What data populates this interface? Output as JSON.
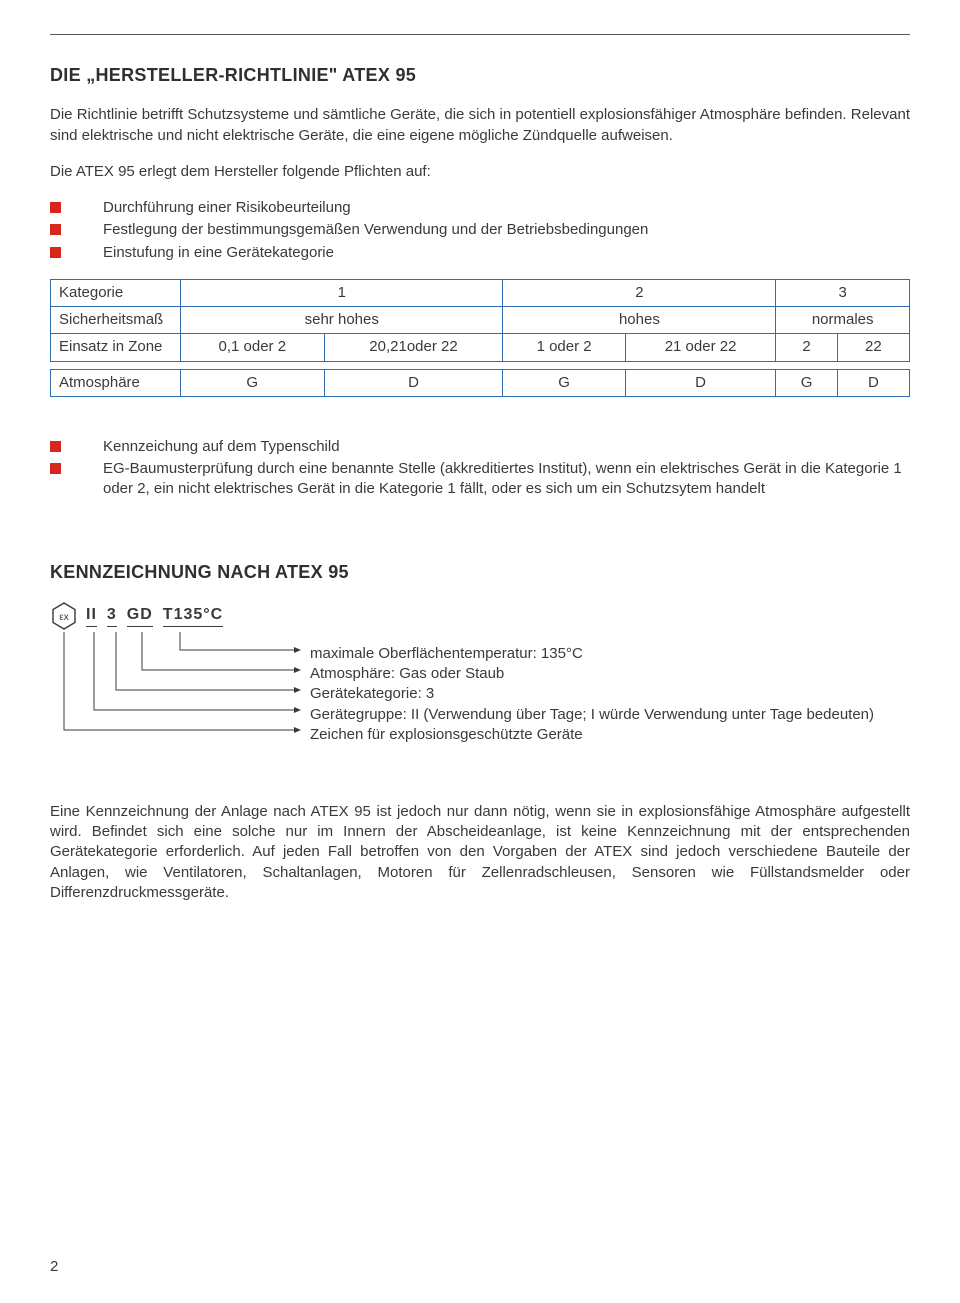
{
  "heading1": "DIE „HERSTELLER-RICHTLINIE\" ATEX 95",
  "intro": "Die Richtlinie betrifft Schutzsysteme und sämtliche Geräte, die sich in potentiell explosionsfähiger Atmosphäre befinden. Relevant sind elektrische und nicht elektrische Geräte, die eine eigene mögliche Zündquelle aufweisen.",
  "intro2": "Die ATEX 95 erlegt dem Hersteller folgende Pflichten auf:",
  "bullets1": [
    "Durchführung einer Risikobeurteilung",
    "Festlegung der bestimmungsgemäßen Verwendung und der Betriebsbedingungen",
    "Einstufung in eine Gerätekategorie"
  ],
  "table": {
    "rows": [
      {
        "label": "Kategorie",
        "cells": [
          {
            "t": "1",
            "span": 2
          },
          {
            "t": "2",
            "span": 2
          },
          {
            "t": "3",
            "span": 2
          }
        ]
      },
      {
        "label": "Sicherheitsmaß",
        "cells": [
          {
            "t": "sehr hohes",
            "span": 2
          },
          {
            "t": "hohes",
            "span": 2
          },
          {
            "t": "normales",
            "span": 2
          }
        ]
      },
      {
        "label": "Einsatz in Zone",
        "cells": [
          {
            "t": "0,1 oder 2"
          },
          {
            "t": "20,21oder 22"
          },
          {
            "t": "1 oder 2"
          },
          {
            "t": "21 oder 22"
          },
          {
            "t": "2"
          },
          {
            "t": "22"
          }
        ]
      },
      {
        "label": "Atmosphäre",
        "cells": [
          {
            "t": "G"
          },
          {
            "t": "D"
          },
          {
            "t": "G"
          },
          {
            "t": "D"
          },
          {
            "t": "G"
          },
          {
            "t": "D"
          }
        ]
      }
    ],
    "border_color": "#2f6fb1"
  },
  "bullets2": [
    "Kennzeichung auf dem Typenschild",
    "EG-Baumusterprüfung durch eine benannte Stelle (akkreditiertes Institut), wenn ein elektrisches Gerät in die Kategorie 1 oder 2, ein nicht elektrisches Gerät in die Kategorie 1 fällt, oder es sich um ein Schutzsytem handelt"
  ],
  "heading2": "KENNZEICHNUNG NACH ATEX 95",
  "marking": {
    "parts": [
      "II",
      "3",
      "GD",
      "T135°C"
    ]
  },
  "explanations": [
    "maximale Oberflächentemperatur: 135°C",
    "Atmosphäre: Gas oder Staub",
    "Gerätekategorie: 3",
    "Gerätegruppe: II (Verwendung über Tage; I würde Verwendung unter Tage bedeuten)",
    "Zeichen für explosionsgeschützte Geräte"
  ],
  "closing": "Eine Kennzeichnung der Anlage nach ATEX 95 ist jedoch nur dann nötig, wenn sie in explosionsfähige Atmosphäre aufgestellt wird. Befindet sich eine solche nur im Innern der Abscheideanlage, ist keine  Kennzeichnung mit der entsprechenden Gerätekategorie erforderlich. Auf jeden Fall betroffen von den Vorgaben der ATEX sind jedoch verschiedene Bauteile der Anlagen, wie Ventilatoren, Schaltanlagen, Motoren für Zellenradschleusen, Sensoren wie Füllstandsmelder oder Differenzdruckmessgeräte.",
  "page_number": "2",
  "colors": {
    "bullet": "#d9261c",
    "text": "#3a3a3a",
    "line": "#3a3a3a"
  }
}
